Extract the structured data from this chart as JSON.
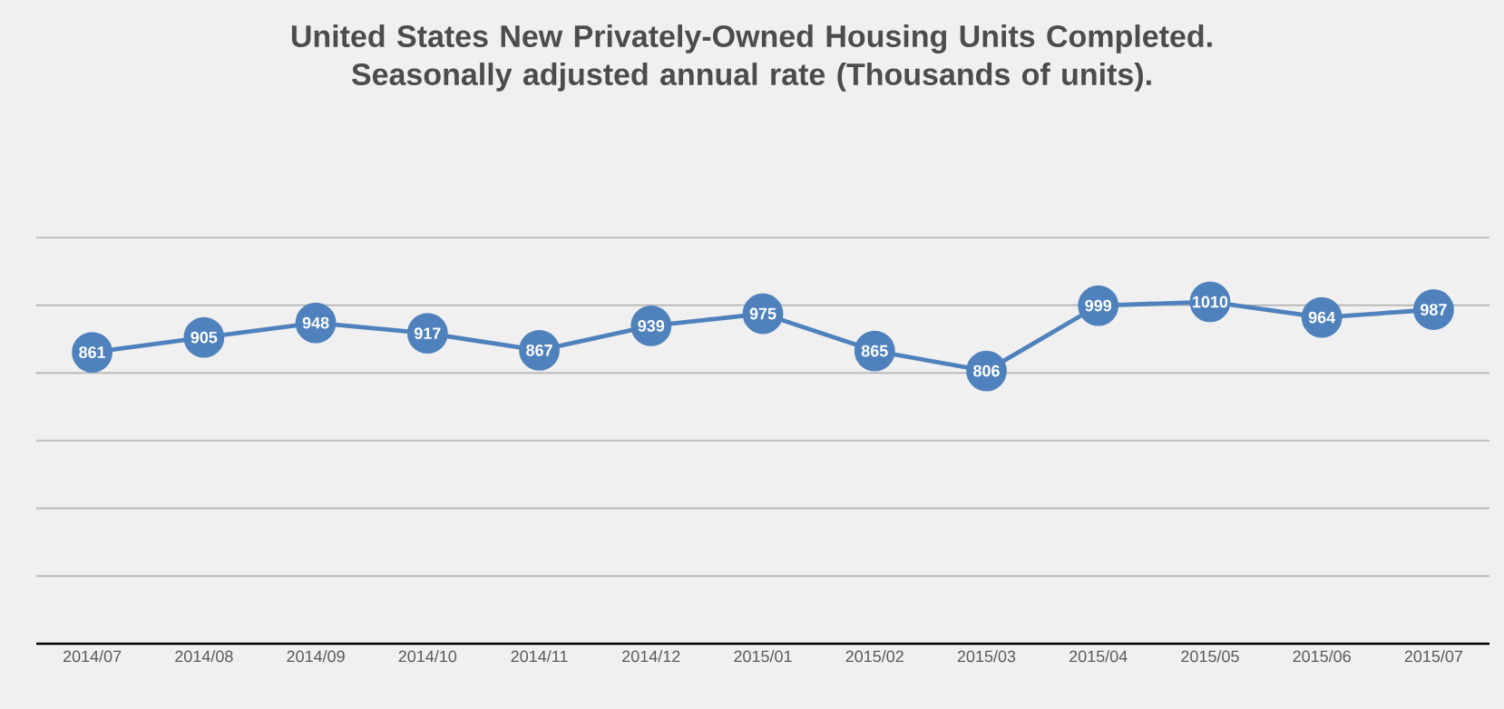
{
  "chart_data": {
    "type": "line",
    "title": "United States New Privately-Owned Housing Units Completed. Seasonally adjusted annual rate (Thousands of units).",
    "categories": [
      "2014/07",
      "2014/08",
      "2014/09",
      "2014/10",
      "2014/11",
      "2014/12",
      "2015/01",
      "2015/02",
      "2015/03",
      "2015/04",
      "2015/05",
      "2015/06",
      "2015/07"
    ],
    "series": [
      {
        "color": "#4f81bd",
        "values": [
          861,
          905,
          948,
          917,
          867,
          939,
          975,
          865,
          806,
          999,
          1010,
          964,
          987
        ]
      }
    ],
    "ylim": [
      0,
      1200
    ],
    "tick_labels": "x",
    "grid": "y",
    "marker": "circle",
    "line_style": "solid",
    "data_labels": true
  }
}
